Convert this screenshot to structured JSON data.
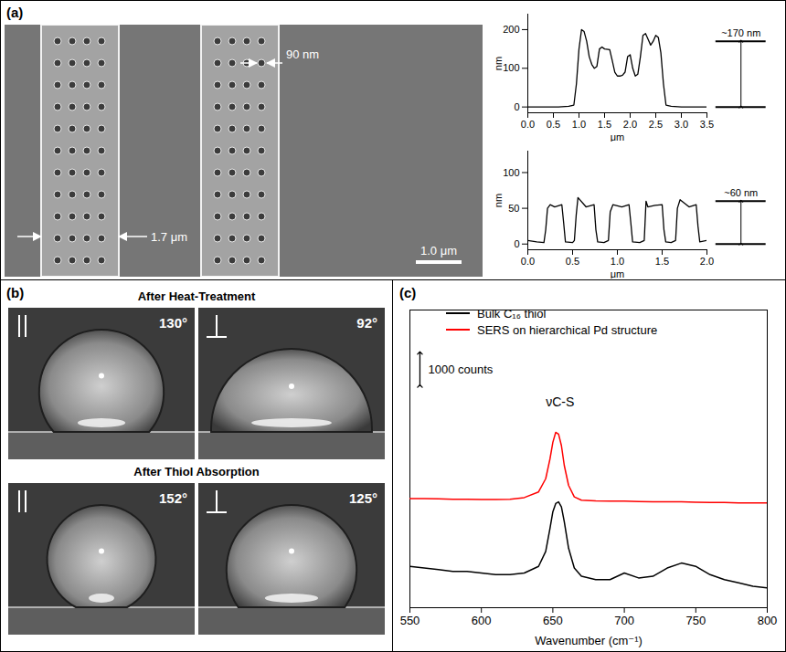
{
  "chart_data": [
    {
      "type": "line",
      "x_label": "μm",
      "y_label": "nm",
      "color": "#000000",
      "x": [
        0,
        0.2,
        0.4,
        0.6,
        0.8,
        0.9,
        0.95,
        1.0,
        1.05,
        1.1,
        1.15,
        1.2,
        1.25,
        1.3,
        1.35,
        1.4,
        1.45,
        1.5,
        1.6,
        1.65,
        1.7,
        1.75,
        1.8,
        1.85,
        1.9,
        1.95,
        2.0,
        2.05,
        2.1,
        2.15,
        2.2,
        2.25,
        2.3,
        2.35,
        2.4,
        2.45,
        2.5,
        2.55,
        2.6,
        2.65,
        2.7,
        2.8,
        3.0,
        3.2,
        3.5
      ],
      "values": [
        0,
        0,
        0,
        0,
        2,
        5,
        60,
        150,
        200,
        195,
        170,
        130,
        110,
        100,
        105,
        150,
        155,
        150,
        148,
        120,
        90,
        80,
        80,
        82,
        90,
        130,
        135,
        100,
        80,
        85,
        130,
        185,
        190,
        175,
        160,
        170,
        185,
        180,
        140,
        60,
        5,
        2,
        0,
        0,
        0
      ],
      "xlim": [
        0,
        3.5
      ],
      "xticks": [
        {
          "value": 0,
          "label": "0.0"
        },
        0.5,
        {
          "value": 1,
          "label": "1.0"
        },
        1.5,
        {
          "value": 2,
          "label": "2.0"
        },
        2.5,
        {
          "value": 3,
          "label": "3.0"
        },
        3.5
      ],
      "ylim": [
        -15,
        240
      ],
      "yticks": [
        0,
        100,
        200
      ],
      "annotation": {
        "text": "~170 nm",
        "from": 0,
        "to": 170
      }
    },
    {
      "type": "line",
      "x_label": "μm",
      "y_label": "nm",
      "color": "#000000",
      "x": [
        0,
        0.1,
        0.18,
        0.2,
        0.22,
        0.25,
        0.3,
        0.38,
        0.4,
        0.42,
        0.5,
        0.52,
        0.54,
        0.56,
        0.65,
        0.74,
        0.76,
        0.78,
        0.85,
        0.9,
        0.92,
        0.95,
        1.05,
        1.13,
        1.15,
        1.17,
        1.25,
        1.3,
        1.32,
        1.34,
        1.42,
        1.5,
        1.52,
        1.54,
        1.6,
        1.65,
        1.67,
        1.7,
        1.8,
        1.88,
        1.9,
        1.92,
        2.0
      ],
      "values": [
        5,
        3,
        2,
        20,
        50,
        55,
        52,
        55,
        30,
        3,
        2,
        5,
        40,
        65,
        52,
        55,
        20,
        3,
        2,
        5,
        45,
        55,
        52,
        55,
        30,
        3,
        2,
        5,
        60,
        52,
        54,
        55,
        20,
        3,
        2,
        5,
        50,
        62,
        52,
        55,
        25,
        3,
        5
      ],
      "xlim": [
        0,
        2
      ],
      "xticks": [
        {
          "value": 0,
          "label": "0.0"
        },
        0.5,
        {
          "value": 1,
          "label": "1.0"
        },
        1.5,
        {
          "value": 2,
          "label": "2.0"
        }
      ],
      "ylim": [
        -8,
        130
      ],
      "yticks": [
        0,
        50,
        100
      ],
      "annotation": {
        "text": "~60 nm",
        "from": 0,
        "to": 60
      }
    },
    {
      "type": "line",
      "panel": "(c)",
      "x_label": "Wavenumber (cm⁻¹)",
      "x": [
        550,
        560,
        570,
        580,
        590,
        600,
        610,
        620,
        630,
        640,
        645,
        648,
        650,
        652,
        654,
        656,
        658,
        661,
        665,
        670,
        680,
        690,
        700,
        710,
        720,
        730,
        740,
        750,
        760,
        770,
        780,
        790,
        800
      ],
      "series": [
        {
          "name": "Bulk C₁₆ thiol",
          "color": "#000000",
          "values": [
            1250,
            1200,
            1150,
            1100,
            1100,
            1050,
            1000,
            1000,
            1050,
            1250,
            1700,
            2400,
            2900,
            3150,
            3200,
            3050,
            2600,
            1800,
            1200,
            950,
            850,
            850,
            1050,
            900,
            950,
            1200,
            1350,
            1250,
            1000,
            850,
            750,
            650,
            600
          ]
        },
        {
          "name": "SERS on hierarchical Pd structure",
          "color": "#ff0000",
          "values": [
            3300,
            3300,
            3290,
            3280,
            3280,
            3270,
            3270,
            3280,
            3330,
            3500,
            3900,
            4500,
            5000,
            5300,
            5250,
            4900,
            4300,
            3700,
            3350,
            3250,
            3230,
            3220,
            3220,
            3210,
            3200,
            3200,
            3200,
            3190,
            3180,
            3180,
            3170,
            3170,
            3170
          ]
        }
      ],
      "xlim": [
        550,
        800
      ],
      "xticks": [
        550,
        600,
        650,
        700,
        750,
        800
      ],
      "ylim": [
        0,
        9000
      ],
      "tick_labels": "x",
      "legend": "top-left",
      "annotations": [
        {
          "text": "νC-S",
          "x": 655,
          "y": 6200
        }
      ],
      "scale_bar": {
        "value": 1000,
        "label": "1000 counts",
        "x": 557,
        "y": 6700
      }
    }
  ],
  "figure": {
    "sem": {
      "panel": "(a)",
      "width_label": "1.7 μm",
      "hole_label": "90 nm",
      "scale_bar": "1.0 μm"
    },
    "contact_angles": {
      "panel": "(b)",
      "rows": [
        {
          "title": "After Heat-Treatment",
          "drops": [
            {
              "direction": "parallel",
              "value": 130,
              "label": "130°"
            },
            {
              "direction": "perpendicular",
              "value": 92,
              "label": "92°"
            }
          ]
        },
        {
          "title": "After Thiol Absorption",
          "drops": [
            {
              "direction": "parallel",
              "value": 152,
              "label": "152°"
            },
            {
              "direction": "perpendicular",
              "value": 125,
              "label": "125°"
            }
          ]
        }
      ]
    }
  }
}
